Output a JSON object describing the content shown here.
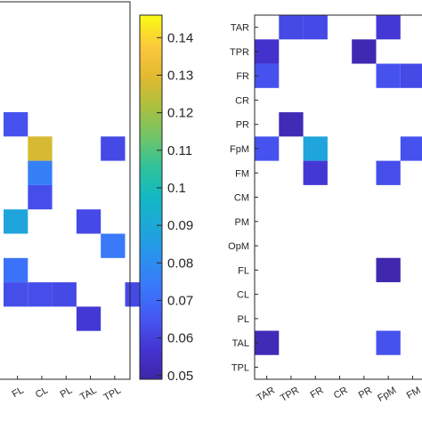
{
  "chart_data": [
    {
      "type": "heatmap",
      "x": [
        "FL",
        "CL",
        "PL",
        "TAL",
        "TPL"
      ],
      "cells": [
        {
          "row": 0,
          "col": 0,
          "value": 0.064
        },
        {
          "row": 1,
          "col": 1,
          "value": 0.128
        },
        {
          "row": 1,
          "col": 4,
          "value": 0.062
        },
        {
          "row": 2,
          "col": 1,
          "value": 0.076
        },
        {
          "row": 3,
          "col": 1,
          "value": 0.063
        },
        {
          "row": 4,
          "col": 0,
          "value": 0.088
        },
        {
          "row": 4,
          "col": 3,
          "value": 0.062
        },
        {
          "row": 5,
          "col": 4,
          "value": 0.074
        },
        {
          "row": 6,
          "col": 0,
          "value": 0.072
        },
        {
          "row": 7,
          "col": 0,
          "value": 0.063
        },
        {
          "row": 7,
          "col": 1,
          "value": 0.063
        },
        {
          "row": 7,
          "col": 2,
          "value": 0.062
        },
        {
          "row": 7,
          "col": 5,
          "value": 0.062
        },
        {
          "row": 8,
          "col": 3,
          "value": 0.058
        }
      ]
    },
    {
      "type": "colorbar",
      "ticks": [
        "0.14",
        "0.13",
        "0.12",
        "0.11",
        "0.1",
        "0.09",
        "0.08",
        "0.07",
        "0.06",
        "0.05"
      ],
      "range": [
        0.049,
        0.146
      ],
      "colormap": "parula"
    },
    {
      "type": "heatmap",
      "x": [
        "TAR",
        "TPR",
        "FR",
        "CR",
        "PR",
        "FpM",
        "FM"
      ],
      "y": [
        "TAR",
        "TPR",
        "FR",
        "CR",
        "PR",
        "FpM",
        "FM",
        "CM",
        "PM",
        "OpM",
        "FL",
        "CL",
        "PL",
        "TAL",
        "TPL"
      ],
      "cells": [
        {
          "row": 0,
          "col": 1,
          "value": 0.062
        },
        {
          "row": 0,
          "col": 2,
          "value": 0.062
        },
        {
          "row": 0,
          "col": 5,
          "value": 0.058
        },
        {
          "row": 1,
          "col": 0,
          "value": 0.056
        },
        {
          "row": 1,
          "col": 4,
          "value": 0.051
        },
        {
          "row": 2,
          "col": 0,
          "value": 0.064
        },
        {
          "row": 2,
          "col": 5,
          "value": 0.064
        },
        {
          "row": 2,
          "col": 6,
          "value": 0.062
        },
        {
          "row": 4,
          "col": 1,
          "value": 0.052
        },
        {
          "row": 5,
          "col": 0,
          "value": 0.064
        },
        {
          "row": 5,
          "col": 2,
          "value": 0.088
        },
        {
          "row": 5,
          "col": 6,
          "value": 0.064
        },
        {
          "row": 6,
          "col": 2,
          "value": 0.058
        },
        {
          "row": 6,
          "col": 5,
          "value": 0.063
        },
        {
          "row": 10,
          "col": 5,
          "value": 0.05
        },
        {
          "row": 13,
          "col": 0,
          "value": 0.052
        },
        {
          "row": 13,
          "col": 5,
          "value": 0.064
        }
      ]
    }
  ]
}
